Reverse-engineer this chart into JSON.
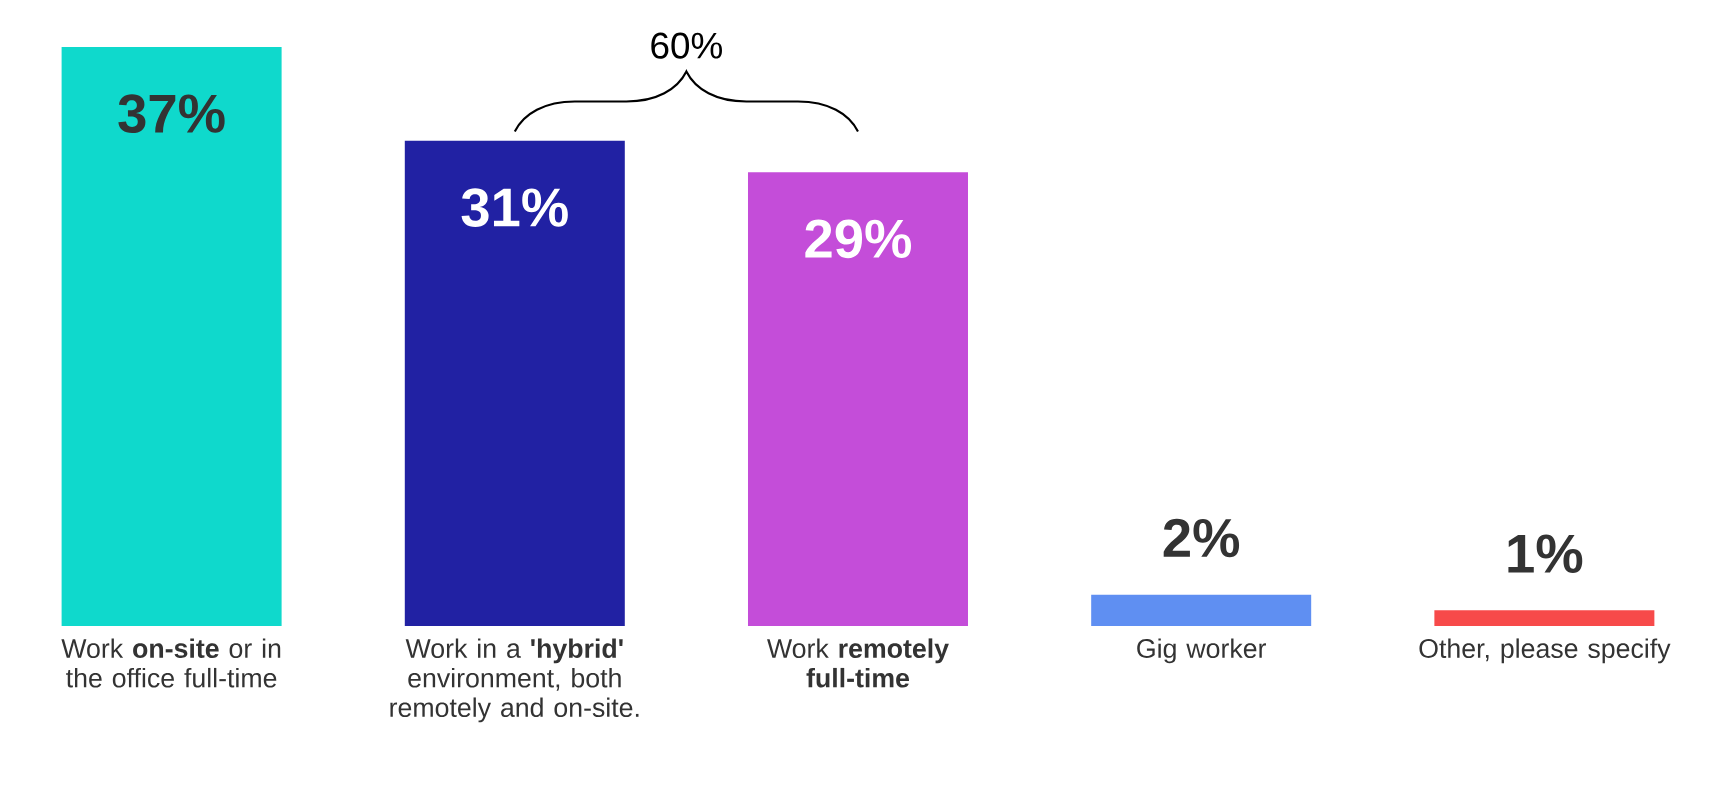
{
  "chart_data": {
    "type": "bar",
    "categories": [
      "Work **on-site** or in the office full-time",
      "Work in a **'hybrid'** environment, both remotely and on-site.",
      "Work **remotely full-time**",
      "Gig worker",
      "Other, please specify"
    ],
    "values": [
      37,
      31,
      29,
      2,
      1
    ],
    "colors": [
      "#0fd9cc",
      "#2121a3",
      "#c44dd9",
      "#5f8ff2",
      "#f74a4a"
    ],
    "value_labels": [
      "37%",
      "31%",
      "29%",
      "2%",
      "1%"
    ],
    "annotations": [
      "60%"
    ]
  }
}
